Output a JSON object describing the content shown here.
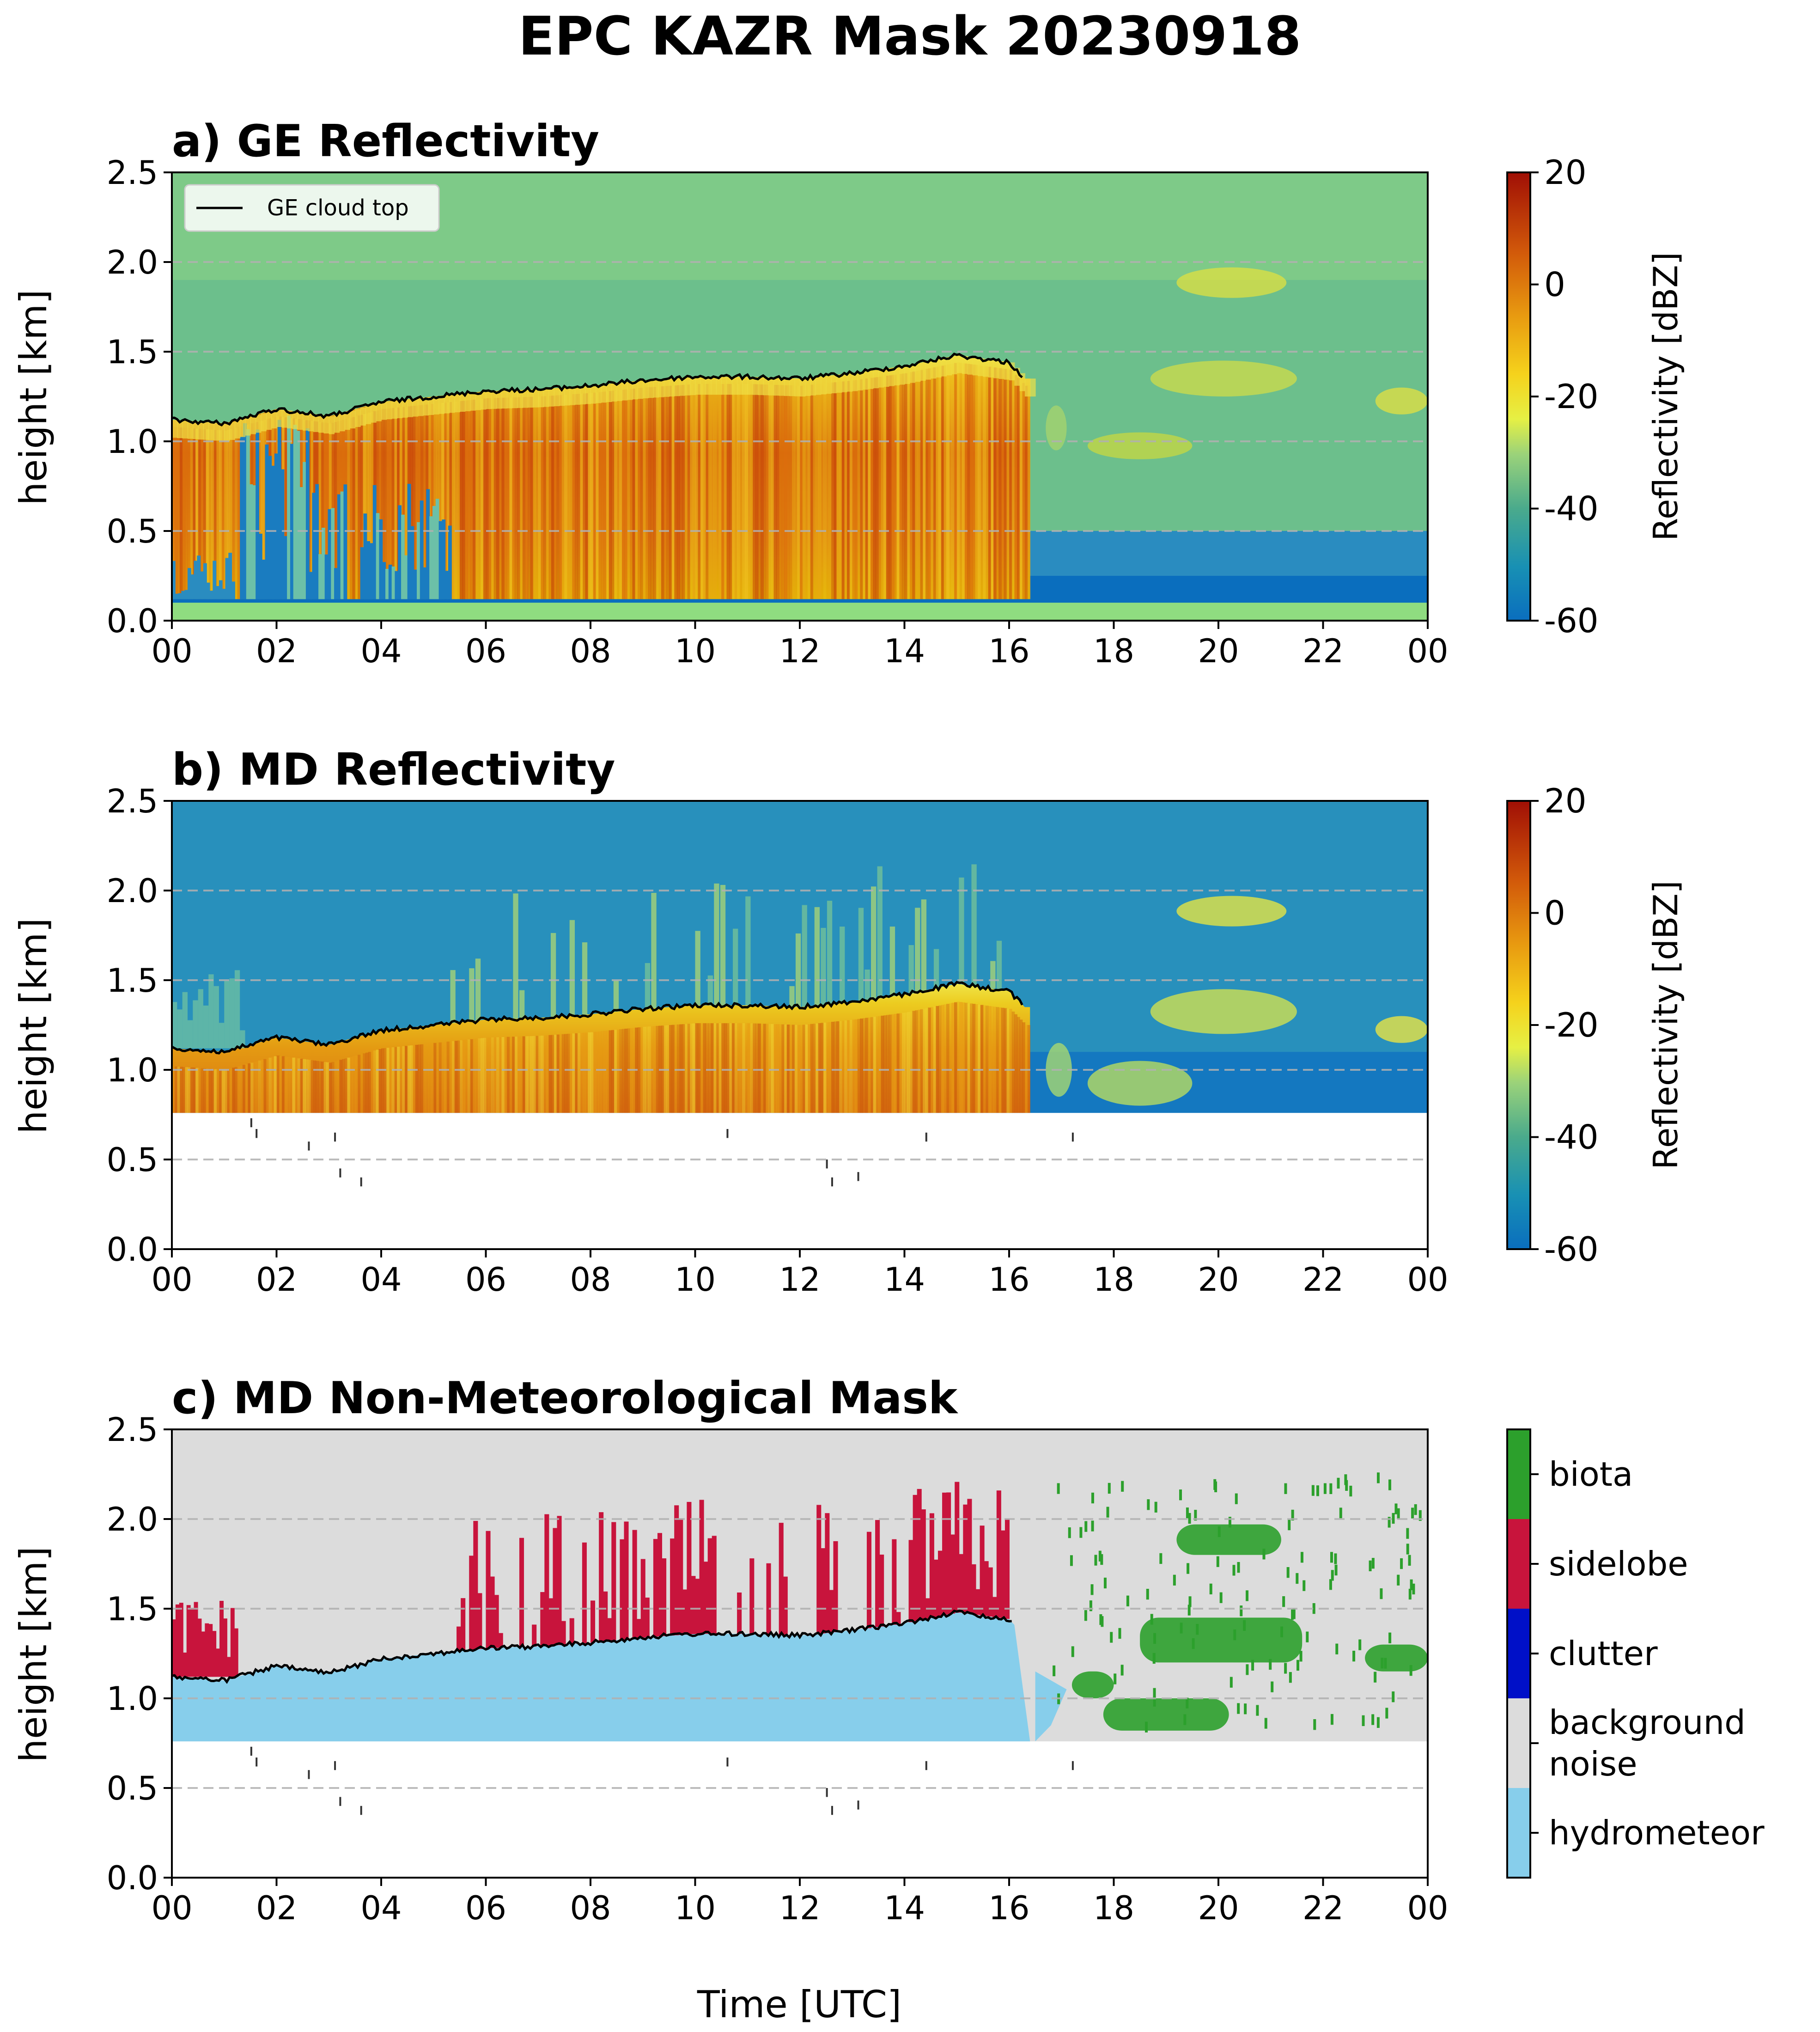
{
  "suptitle": "EPC KAZR Mask 20230918",
  "xlabel": "Time [UTC]",
  "chart_data": [
    {
      "type": "heatmap",
      "title": "a) GE Reflectivity",
      "ylabel": "height [km]",
      "xlim": [
        0,
        24
      ],
      "ylim": [
        0.0,
        2.5
      ],
      "xticks": [
        "00",
        "02",
        "04",
        "06",
        "08",
        "10",
        "12",
        "14",
        "16",
        "18",
        "20",
        "22",
        "00"
      ],
      "yticks": [
        "0.0",
        "0.5",
        "1.0",
        "1.5",
        "2.0",
        "2.5"
      ],
      "grid": "horizontal dashed",
      "legend": {
        "placement": "top-left",
        "entries": [
          "GE cloud top"
        ]
      },
      "colorbar": {
        "label": "Reflectivity [dBZ]",
        "range": [
          -60,
          20
        ],
        "ticks": [
          "20",
          "0",
          "-20",
          "-40",
          "-60"
        ]
      },
      "cloud_top": {
        "x": [
          0,
          1,
          2,
          3,
          4,
          5,
          6,
          7,
          8,
          9,
          10,
          11,
          12,
          13,
          14,
          15,
          16,
          16.3
        ],
        "y": [
          1.12,
          1.1,
          1.18,
          1.14,
          1.22,
          1.25,
          1.28,
          1.29,
          1.31,
          1.34,
          1.36,
          1.36,
          1.35,
          1.38,
          1.42,
          1.48,
          1.44,
          1.35
        ]
      },
      "cloud_base_km": 0.12,
      "cloud_end_hour": 16.4
    },
    {
      "type": "heatmap",
      "title": "b) MD Reflectivity",
      "ylabel": "height [km]",
      "xlim": [
        0,
        24
      ],
      "ylim": [
        0.0,
        2.5
      ],
      "xticks": [
        "00",
        "02",
        "04",
        "06",
        "08",
        "10",
        "12",
        "14",
        "16",
        "18",
        "20",
        "22",
        "00"
      ],
      "yticks": [
        "0.0",
        "0.5",
        "1.0",
        "1.5",
        "2.0",
        "2.5"
      ],
      "grid": "horizontal dashed",
      "colorbar": {
        "label": "Reflectivity [dBZ]",
        "range": [
          -60,
          20
        ],
        "ticks": [
          "20",
          "0",
          "-20",
          "-40",
          "-60"
        ]
      },
      "data_floor_km": 0.76
    },
    {
      "type": "heatmap",
      "title": "c) MD Non-Meteorological Mask",
      "ylabel": "height [km]",
      "xlim": [
        0,
        24
      ],
      "ylim": [
        0.0,
        2.5
      ],
      "xticks": [
        "00",
        "02",
        "04",
        "06",
        "08",
        "10",
        "12",
        "14",
        "16",
        "18",
        "20",
        "22",
        "00"
      ],
      "yticks": [
        "0.0",
        "0.5",
        "1.0",
        "1.5",
        "2.0",
        "2.5"
      ],
      "grid": "horizontal dashed",
      "categories": [
        {
          "label": "biota",
          "color": "#2ca02c"
        },
        {
          "label": "sidelobe",
          "color": "#c8143c"
        },
        {
          "label": "clutter",
          "color": "#0010c8"
        },
        {
          "label": "background noise",
          "color": "#dcdcdc"
        },
        {
          "label": "hydrometeor",
          "color": "#87ceeb"
        }
      ],
      "data_floor_km": 0.76
    }
  ]
}
